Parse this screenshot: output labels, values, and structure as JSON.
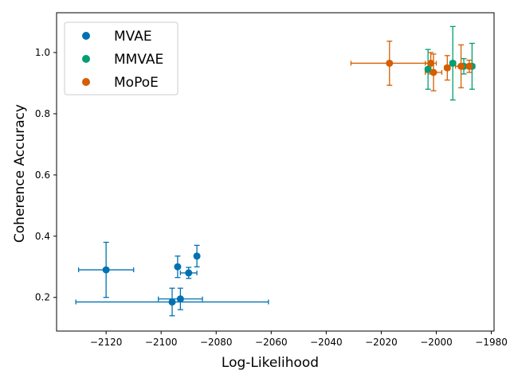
{
  "chart_data": {
    "type": "scatter",
    "title": "",
    "xlabel": "Log-Likelihood",
    "ylabel": "Coherence Accuracy",
    "xlim": [
      -2138,
      -1979
    ],
    "ylim": [
      0.09,
      1.13
    ],
    "xticks": [
      -2120,
      -2100,
      -2080,
      -2060,
      -2040,
      -2020,
      -2000,
      -1980
    ],
    "yticks": [
      0.2,
      0.4,
      0.6,
      0.8,
      1.0
    ],
    "xtick_labels": [
      "−2120",
      "−2100",
      "−2080",
      "−2060",
      "−2040",
      "−2020",
      "−2000",
      "−1980"
    ],
    "ytick_labels": [
      "0.2",
      "0.4",
      "0.6",
      "0.8",
      "1.0"
    ],
    "legend_position": "top-left",
    "series": [
      {
        "name": "MVAE",
        "color": "#0072b2",
        "points": [
          {
            "x": -2120,
            "y": 0.29,
            "xerr": 10,
            "yerr": 0.09
          },
          {
            "x": -2096,
            "y": 0.185,
            "xerr": 35,
            "yerr": 0.045
          },
          {
            "x": -2093,
            "y": 0.195,
            "xerr": 8,
            "yerr": 0.035
          },
          {
            "x": -2094,
            "y": 0.3,
            "xerr": 0,
            "yerr": 0.035
          },
          {
            "x": -2090,
            "y": 0.28,
            "xerr": 3,
            "yerr": 0.018
          },
          {
            "x": -2087,
            "y": 0.335,
            "xerr": 0,
            "yerr": 0.035
          }
        ]
      },
      {
        "name": "MMVAE",
        "color": "#009e73",
        "points": [
          {
            "x": -2003,
            "y": 0.945,
            "xerr": 1,
            "yerr": 0.065
          },
          {
            "x": -1994,
            "y": 0.965,
            "xerr": 1,
            "yerr": 0.12
          },
          {
            "x": -1990,
            "y": 0.955,
            "xerr": 1,
            "yerr": 0.025
          },
          {
            "x": -1987,
            "y": 0.955,
            "xerr": 1,
            "yerr": 0.075
          }
        ]
      },
      {
        "name": "MoPoE",
        "color": "#d55e00",
        "points": [
          {
            "x": -2017,
            "y": 0.965,
            "xerr": 14,
            "yerr": 0.072
          },
          {
            "x": -2002,
            "y": 0.965,
            "xerr": 2,
            "yerr": 0.035
          },
          {
            "x": -2001,
            "y": 0.935,
            "xerr": 3,
            "yerr": 0.06
          },
          {
            "x": -1996,
            "y": 0.95,
            "xerr": 1,
            "yerr": 0.04
          },
          {
            "x": -1991,
            "y": 0.955,
            "xerr": 2,
            "yerr": 0.07
          },
          {
            "x": -1988,
            "y": 0.955,
            "xerr": 1,
            "yerr": 0.02
          }
        ]
      }
    ]
  }
}
